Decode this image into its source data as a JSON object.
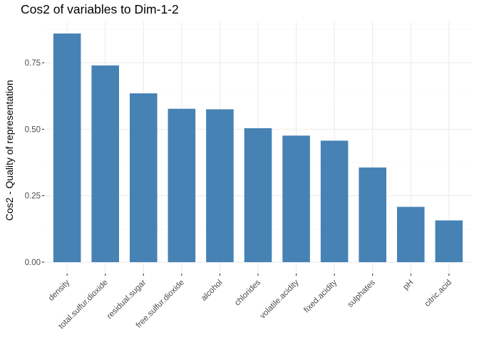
{
  "chart_data": {
    "type": "bar",
    "title": "Cos2 of variables to Dim-1-2",
    "xlabel": "",
    "ylabel": "Cos2 - Quality of representation",
    "categories": [
      "density",
      "total.sulfur.dioxide",
      "residual.sugar",
      "free.sulfur.dioxide",
      "alcohol",
      "chlorides",
      "volatile.acidity",
      "fixed.acidity",
      "sulphates",
      "pH",
      "citric.acid"
    ],
    "values": [
      0.86,
      0.74,
      0.635,
      0.577,
      0.575,
      0.504,
      0.476,
      0.457,
      0.356,
      0.208,
      0.157
    ],
    "ylim": [
      0,
      0.86
    ],
    "y_ticks": [
      0.0,
      0.25,
      0.5,
      0.75
    ],
    "y_tick_labels": [
      "0.00",
      "0.25",
      "0.50",
      "0.75"
    ],
    "bar_color": "#4682B4",
    "grid": true,
    "legend": false
  }
}
